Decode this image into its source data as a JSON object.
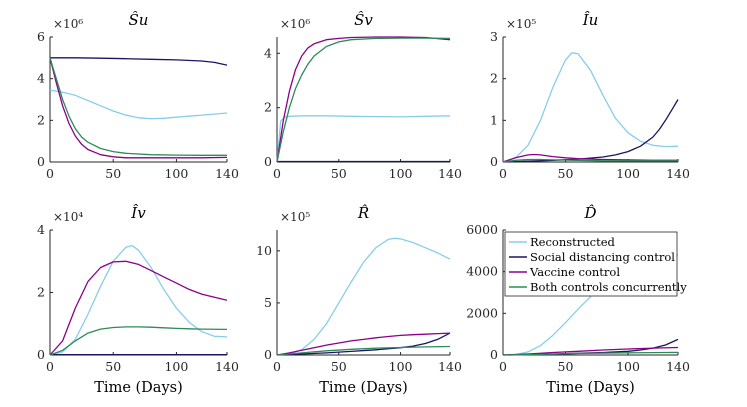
{
  "colors": {
    "reconstructed": "#87CEEB",
    "social": "#1B1464",
    "vaccine": "#8B008B",
    "both": "#2E8B57"
  },
  "legend": [
    {
      "label": "Reconstructed",
      "color_key": "reconstructed"
    },
    {
      "label": "Social distancing control",
      "color_key": "social"
    },
    {
      "label": "Vaccine control",
      "color_key": "vaccine"
    },
    {
      "label": "Both controls concurrently",
      "color_key": "both"
    }
  ],
  "chart_data": [
    {
      "type": "line",
      "title": "Ŝu",
      "multiplier": "×10⁶",
      "xlabel": "",
      "xlim": [
        0,
        140
      ],
      "ylim": [
        0,
        6
      ],
      "xticks": [
        0,
        50,
        100,
        140
      ],
      "xtick_labels": [
        "0",
        "50",
        "100",
        "140"
      ],
      "yticks": [
        0,
        2,
        4,
        6
      ],
      "ytick_labels": [
        "0",
        "2",
        "4",
        "6"
      ],
      "series": [
        {
          "name": "Reconstructed",
          "color_key": "reconstructed",
          "x": [
            0,
            10,
            20,
            30,
            40,
            50,
            60,
            70,
            80,
            90,
            100,
            110,
            120,
            130,
            140
          ],
          "y": [
            3.45,
            3.35,
            3.2,
            2.95,
            2.7,
            2.45,
            2.25,
            2.12,
            2.08,
            2.1,
            2.15,
            2.2,
            2.25,
            2.3,
            2.35
          ]
        },
        {
          "name": "Social distancing control",
          "color_key": "social",
          "x": [
            0,
            20,
            40,
            60,
            80,
            100,
            120,
            130,
            140
          ],
          "y": [
            5.0,
            5.0,
            4.98,
            4.96,
            4.93,
            4.9,
            4.85,
            4.78,
            4.65
          ]
        },
        {
          "name": "Vaccine control",
          "color_key": "vaccine",
          "x": [
            0,
            5,
            10,
            15,
            20,
            25,
            30,
            40,
            50,
            60,
            80,
            100,
            120,
            140
          ],
          "y": [
            5.0,
            3.8,
            2.7,
            1.85,
            1.25,
            0.85,
            0.6,
            0.35,
            0.25,
            0.2,
            0.2,
            0.2,
            0.2,
            0.22
          ]
        },
        {
          "name": "Both controls concurrently",
          "color_key": "both",
          "x": [
            0,
            5,
            10,
            15,
            20,
            25,
            30,
            40,
            50,
            60,
            80,
            100,
            120,
            140
          ],
          "y": [
            5.0,
            4.0,
            3.0,
            2.2,
            1.6,
            1.2,
            0.95,
            0.65,
            0.5,
            0.42,
            0.35,
            0.33,
            0.32,
            0.32
          ]
        }
      ]
    },
    {
      "type": "line",
      "title": "Ŝv",
      "multiplier": "×10⁶",
      "xlabel": "",
      "xlim": [
        0,
        140
      ],
      "ylim": [
        0,
        4.6
      ],
      "xticks": [
        0,
        50,
        100,
        140
      ],
      "xtick_labels": [
        "0",
        "50",
        "100",
        "140"
      ],
      "yticks": [
        0,
        2,
        4
      ],
      "ytick_labels": [
        "0",
        "2",
        "4"
      ],
      "series": [
        {
          "name": "Reconstructed",
          "color_key": "reconstructed",
          "x": [
            0,
            3,
            6,
            10,
            20,
            40,
            60,
            80,
            100,
            120,
            140
          ],
          "y": [
            0,
            1.5,
            1.65,
            1.68,
            1.7,
            1.7,
            1.68,
            1.67,
            1.66,
            1.68,
            1.7
          ]
        },
        {
          "name": "Social distancing control",
          "color_key": "social",
          "x": [
            0,
            20,
            40,
            60,
            80,
            100,
            120,
            140
          ],
          "y": [
            0.02,
            0.02,
            0.02,
            0.02,
            0.02,
            0.02,
            0.02,
            0.02
          ]
        },
        {
          "name": "Vaccine control",
          "color_key": "vaccine",
          "x": [
            0,
            5,
            10,
            15,
            20,
            25,
            30,
            40,
            50,
            60,
            80,
            100,
            120,
            140
          ],
          "y": [
            0,
            1.5,
            2.6,
            3.4,
            3.9,
            4.2,
            4.35,
            4.5,
            4.55,
            4.58,
            4.6,
            4.6,
            4.58,
            4.5
          ]
        },
        {
          "name": "Both controls concurrently",
          "color_key": "both",
          "x": [
            0,
            5,
            10,
            15,
            20,
            25,
            30,
            40,
            50,
            60,
            80,
            100,
            120,
            140
          ],
          "y": [
            0,
            1.1,
            2.0,
            2.7,
            3.2,
            3.6,
            3.9,
            4.25,
            4.42,
            4.5,
            4.55,
            4.56,
            4.56,
            4.55
          ]
        }
      ]
    },
    {
      "type": "line",
      "title": "Îu",
      "multiplier": "×10⁵",
      "xlabel": "",
      "xlim": [
        0,
        140
      ],
      "ylim": [
        0,
        3
      ],
      "xticks": [
        0,
        50,
        100,
        140
      ],
      "xtick_labels": [
        "0",
        "50",
        "100",
        "140"
      ],
      "yticks": [
        0,
        1,
        2,
        3
      ],
      "ytick_labels": [
        "0",
        "1",
        "2",
        "3"
      ],
      "series": [
        {
          "name": "Reconstructed",
          "color_key": "reconstructed",
          "x": [
            0,
            10,
            20,
            30,
            40,
            50,
            55,
            60,
            70,
            80,
            90,
            100,
            110,
            120,
            130,
            140
          ],
          "y": [
            0,
            0.1,
            0.4,
            1.0,
            1.8,
            2.45,
            2.62,
            2.6,
            2.2,
            1.6,
            1.05,
            0.7,
            0.5,
            0.4,
            0.37,
            0.38
          ]
        },
        {
          "name": "Social distancing control",
          "color_key": "social",
          "x": [
            0,
            20,
            40,
            60,
            80,
            90,
            100,
            110,
            120,
            125,
            130,
            135,
            140
          ],
          "y": [
            0,
            0.02,
            0.04,
            0.07,
            0.12,
            0.17,
            0.25,
            0.38,
            0.6,
            0.78,
            1.0,
            1.25,
            1.5
          ]
        },
        {
          "name": "Vaccine control",
          "color_key": "vaccine",
          "x": [
            0,
            10,
            20,
            25,
            30,
            40,
            50,
            60,
            80,
            100,
            120,
            140
          ],
          "y": [
            0,
            0.1,
            0.17,
            0.18,
            0.17,
            0.13,
            0.1,
            0.08,
            0.06,
            0.05,
            0.04,
            0.04
          ]
        },
        {
          "name": "Both controls concurrently",
          "color_key": "both",
          "x": [
            0,
            10,
            20,
            30,
            40,
            60,
            80,
            100,
            120,
            140
          ],
          "y": [
            0,
            0.04,
            0.06,
            0.06,
            0.05,
            0.04,
            0.03,
            0.03,
            0.03,
            0.03
          ]
        }
      ]
    },
    {
      "type": "line",
      "title": "Îv",
      "multiplier": "×10⁴",
      "xlabel": "Time (Days)",
      "xlim": [
        0,
        140
      ],
      "ylim": [
        0,
        4
      ],
      "xticks": [
        0,
        50,
        100,
        140
      ],
      "xtick_labels": [
        "0",
        "50",
        "100",
        "140"
      ],
      "yticks": [
        0,
        2,
        4
      ],
      "ytick_labels": [
        "0",
        "2",
        "4"
      ],
      "series": [
        {
          "name": "Reconstructed",
          "color_key": "reconstructed",
          "x": [
            0,
            10,
            20,
            30,
            40,
            50,
            60,
            65,
            70,
            80,
            90,
            100,
            110,
            120,
            130,
            140
          ],
          "y": [
            0,
            0.1,
            0.5,
            1.3,
            2.2,
            3.0,
            3.45,
            3.5,
            3.35,
            2.8,
            2.1,
            1.5,
            1.05,
            0.75,
            0.6,
            0.58
          ]
        },
        {
          "name": "Social distancing control",
          "color_key": "social",
          "x": [
            0,
            20,
            40,
            60,
            80,
            100,
            120,
            140
          ],
          "y": [
            0.01,
            0.01,
            0.01,
            0.01,
            0.01,
            0.01,
            0.01,
            0.01
          ]
        },
        {
          "name": "Vaccine control",
          "color_key": "vaccine",
          "x": [
            0,
            10,
            20,
            30,
            40,
            50,
            60,
            70,
            80,
            90,
            100,
            110,
            120,
            130,
            140
          ],
          "y": [
            0,
            0.45,
            1.5,
            2.35,
            2.8,
            2.98,
            3.0,
            2.9,
            2.7,
            2.5,
            2.3,
            2.1,
            1.95,
            1.85,
            1.75
          ]
        },
        {
          "name": "Both controls concurrently",
          "color_key": "both",
          "x": [
            0,
            10,
            20,
            30,
            40,
            50,
            60,
            70,
            80,
            90,
            100,
            110,
            120,
            140
          ],
          "y": [
            0,
            0.15,
            0.45,
            0.7,
            0.83,
            0.88,
            0.9,
            0.9,
            0.89,
            0.87,
            0.85,
            0.84,
            0.83,
            0.82
          ]
        }
      ]
    },
    {
      "type": "line",
      "title": "R̂",
      "multiplier": "×10⁵",
      "xlabel": "Time (Days)",
      "xlim": [
        0,
        140
      ],
      "ylim": [
        0,
        12
      ],
      "xticks": [
        0,
        50,
        100,
        140
      ],
      "xtick_labels": [
        "0",
        "50",
        "100",
        "140"
      ],
      "yticks": [
        0,
        5,
        10
      ],
      "ytick_labels": [
        "0",
        "5",
        "10"
      ],
      "series": [
        {
          "name": "Reconstructed",
          "color_key": "reconstructed",
          "x": [
            0,
            10,
            20,
            30,
            40,
            50,
            60,
            70,
            80,
            90,
            95,
            100,
            110,
            120,
            130,
            140
          ],
          "y": [
            0,
            0.1,
            0.5,
            1.5,
            3.0,
            5.0,
            7.0,
            8.9,
            10.3,
            11.1,
            11.2,
            11.15,
            10.8,
            10.3,
            9.8,
            9.2
          ]
        },
        {
          "name": "Social distancing control",
          "color_key": "social",
          "x": [
            0,
            20,
            40,
            60,
            80,
            100,
            110,
            120,
            130,
            140
          ],
          "y": [
            0,
            0.1,
            0.2,
            0.35,
            0.5,
            0.7,
            0.85,
            1.1,
            1.5,
            2.1
          ]
        },
        {
          "name": "Vaccine control",
          "color_key": "vaccine",
          "x": [
            0,
            10,
            20,
            30,
            40,
            50,
            60,
            70,
            80,
            90,
            100,
            110,
            120,
            130,
            140
          ],
          "y": [
            0,
            0.2,
            0.45,
            0.7,
            0.95,
            1.15,
            1.35,
            1.5,
            1.65,
            1.78,
            1.88,
            1.95,
            2.0,
            2.05,
            2.1
          ]
        },
        {
          "name": "Both controls concurrently",
          "color_key": "both",
          "x": [
            0,
            20,
            40,
            60,
            80,
            100,
            120,
            140
          ],
          "y": [
            0,
            0.2,
            0.4,
            0.55,
            0.65,
            0.72,
            0.78,
            0.82
          ]
        }
      ]
    },
    {
      "type": "line",
      "title": "D̂",
      "multiplier": "",
      "xlabel": "Time (Days)",
      "xlim": [
        0,
        140
      ],
      "ylim": [
        0,
        6000
      ],
      "xticks": [
        0,
        50,
        100,
        140
      ],
      "xtick_labels": [
        "0",
        "50",
        "100",
        "140"
      ],
      "yticks": [
        0,
        2000,
        4000,
        6000
      ],
      "ytick_labels": [
        "0",
        "2000",
        "4000",
        "6000"
      ],
      "series": [
        {
          "name": "Reconstructed",
          "color_key": "reconstructed",
          "x": [
            0,
            10,
            20,
            30,
            40,
            50,
            60,
            70,
            80,
            90,
            100,
            110,
            120,
            130,
            140
          ],
          "y": [
            0,
            20,
            150,
            450,
            950,
            1550,
            2200,
            2800,
            3350,
            3800,
            4150,
            4400,
            4600,
            4720,
            4820
          ]
        },
        {
          "name": "Social distancing control",
          "color_key": "social",
          "x": [
            0,
            20,
            40,
            60,
            80,
            100,
            110,
            120,
            130,
            140
          ],
          "y": [
            0,
            20,
            50,
            80,
            120,
            180,
            240,
            330,
            480,
            750
          ]
        },
        {
          "name": "Vaccine control",
          "color_key": "vaccine",
          "x": [
            0,
            20,
            40,
            60,
            80,
            100,
            120,
            140
          ],
          "y": [
            0,
            50,
            120,
            180,
            240,
            290,
            330,
            360
          ]
        },
        {
          "name": "Both controls concurrently",
          "color_key": "both",
          "x": [
            0,
            20,
            40,
            60,
            80,
            100,
            120,
            140
          ],
          "y": [
            0,
            20,
            45,
            70,
            90,
            105,
            115,
            125
          ]
        }
      ]
    }
  ]
}
